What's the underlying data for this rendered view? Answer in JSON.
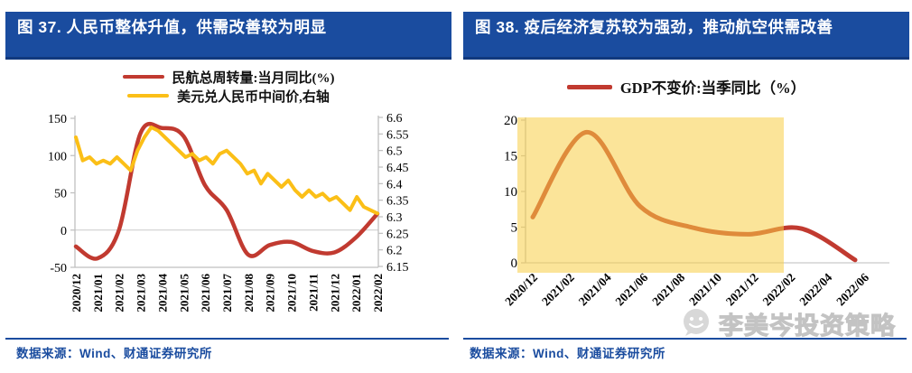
{
  "panels": [
    {
      "title": "图 37.  人民币整体升值，供需改善较为明显",
      "source": "数据来源：Wind、财通证券研究所",
      "chart_data": {
        "type": "line",
        "title": "人民币整体升值，供需改善较为明显",
        "categories": [
          "2020/12",
          "2021/01",
          "2021/02",
          "2021/03",
          "2021/04",
          "2021/05",
          "2021/06",
          "2021/07",
          "2021/08",
          "2021/09",
          "2021/10",
          "2021/11",
          "2021/12",
          "2022/01",
          "2022/02"
        ],
        "series": [
          {
            "name": "民航总周转量:当月同比(%)",
            "axis": "left",
            "color": "#c13a30",
            "style": "smooth",
            "values": [
              -22,
              -38,
              0,
              130,
              137,
              126,
              60,
              27,
              -33,
              -20,
              -16,
              -28,
              -30,
              -10,
              22
            ]
          },
          {
            "name": "美元兑人民币中间价,右轴",
            "axis": "right",
            "color": "#fbbf17",
            "style": "jagged-daily",
            "sampling": "about 3 points per month across the same date range",
            "values": [
              6.54,
              6.47,
              6.48,
              6.46,
              6.47,
              6.46,
              6.48,
              6.46,
              6.44,
              6.5,
              6.54,
              6.57,
              6.56,
              6.54,
              6.52,
              6.5,
              6.48,
              6.49,
              6.47,
              6.48,
              6.46,
              6.49,
              6.5,
              6.48,
              6.46,
              6.43,
              6.44,
              6.4,
              6.43,
              6.41,
              6.39,
              6.41,
              6.38,
              6.36,
              6.38,
              6.36,
              6.37,
              6.35,
              6.36,
              6.34,
              6.32,
              6.36,
              6.33,
              6.32,
              6.31
            ]
          }
        ],
        "left_axis": {
          "ticks": [
            "150",
            "100",
            "50",
            "0",
            "-50"
          ],
          "range": [
            -50,
            150
          ]
        },
        "right_axis": {
          "ticks": [
            "6.6",
            "6.55",
            "6.5",
            "6.45",
            "6.4",
            "6.35",
            "6.3",
            "6.25",
            "6.2",
            "6.15"
          ],
          "range": [
            6.15,
            6.6
          ]
        },
        "grid": "horizontal zero-line only",
        "legend_position": "top-center",
        "x_label_rotation": 90
      }
    },
    {
      "title": "图 38.  疫后经济复苏较为强劲，推动航空供需改善",
      "source": "数据来源：Wind、财通证券研究所",
      "chart_data": {
        "type": "line",
        "title": "疫后经济复苏较为强劲，推动航空供需改善",
        "x_tick_labels": [
          "2020/12",
          "2021/02",
          "2021/04",
          "2021/06",
          "2021/08",
          "2021/10",
          "2021/12",
          "2022/02",
          "2022/04",
          "2022/06"
        ],
        "series": [
          {
            "name": "GDP不变价:当季同比（%）",
            "axis": "left",
            "color": "#c13a30",
            "style": "smooth",
            "quarters": [
              "2020/12",
              "2021/03",
              "2021/06",
              "2021/09",
              "2021/12",
              "2022/03",
              "2022/06"
            ],
            "quarter_months": [
              0,
              3,
              6,
              9,
              12,
              15,
              18
            ],
            "values": [
              6.4,
              18.3,
              7.9,
              4.9,
              4.0,
              4.8,
              0.4
            ]
          }
        ],
        "left_axis": {
          "ticks": [
            "20",
            "15",
            "10",
            "5",
            "0"
          ],
          "range": [
            0,
            20
          ]
        },
        "highlight_band": {
          "from": "2020/12",
          "to": "2022/02",
          "color": "rgba(247,205,70,0.55)"
        },
        "grid": "horizontal zero-line only",
        "legend_position": "top-center",
        "x_label_rotation": 45
      }
    }
  ],
  "watermark": {
    "label": "李美岑投资策略",
    "icon": "wechat-icon"
  },
  "colors": {
    "title_bar": "#1a4c9f",
    "title_bar_border": "#11397e",
    "red_line": "#c13a30",
    "yellow_line": "#fbbf17",
    "band_fill": "rgba(247,205,70,0.55)",
    "axis_line": "#bfbfbf",
    "zero_gridline": "#c9c9c9",
    "footer_text": "#1a4c9f",
    "watermark_gray": "#cccccc"
  }
}
